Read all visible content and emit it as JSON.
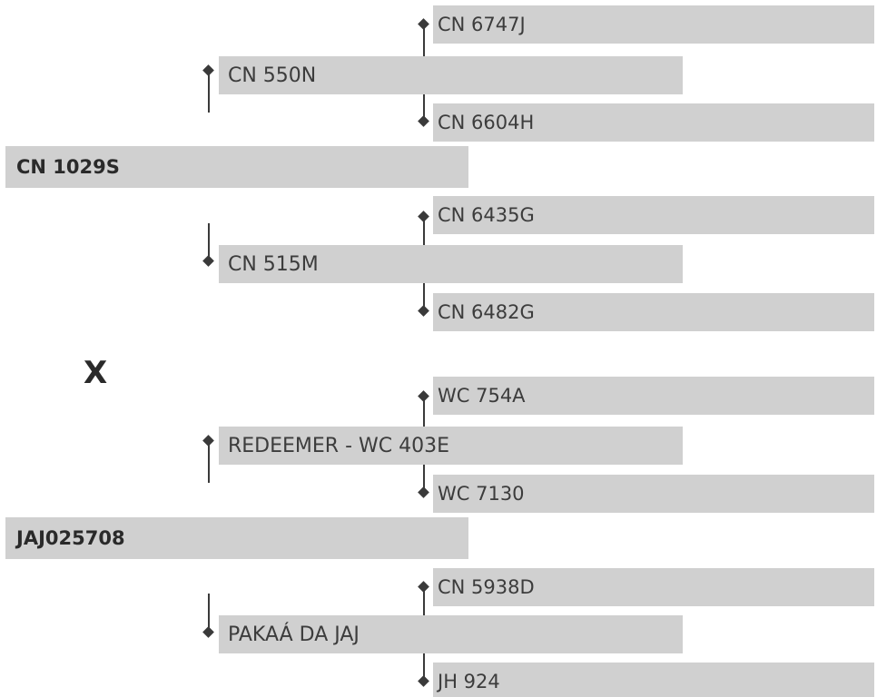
{
  "pedigree": {
    "parent1": {
      "name": "CN 1029S",
      "sire": {
        "name": "CN 550N",
        "sire": "CN 6747J",
        "dam": "CN 6604H"
      },
      "dam": {
        "name": "CN 515M",
        "sire": "CN 6435G",
        "dam": "CN 6482G"
      }
    },
    "cross_symbol": "X",
    "parent2": {
      "name": "JAJ025708",
      "sire": {
        "name": "REDEEMER - WC 403E",
        "sire": "WC 754A",
        "dam": "WC 7130"
      },
      "dam": {
        "name": "PAKAÁ DA JAJ",
        "sire": "CN 5938D",
        "dam": "JH 924"
      }
    }
  },
  "colors": {
    "box": "#d0d0d0",
    "text": "#3c3c3c",
    "connector": "#3a3a3a"
  }
}
